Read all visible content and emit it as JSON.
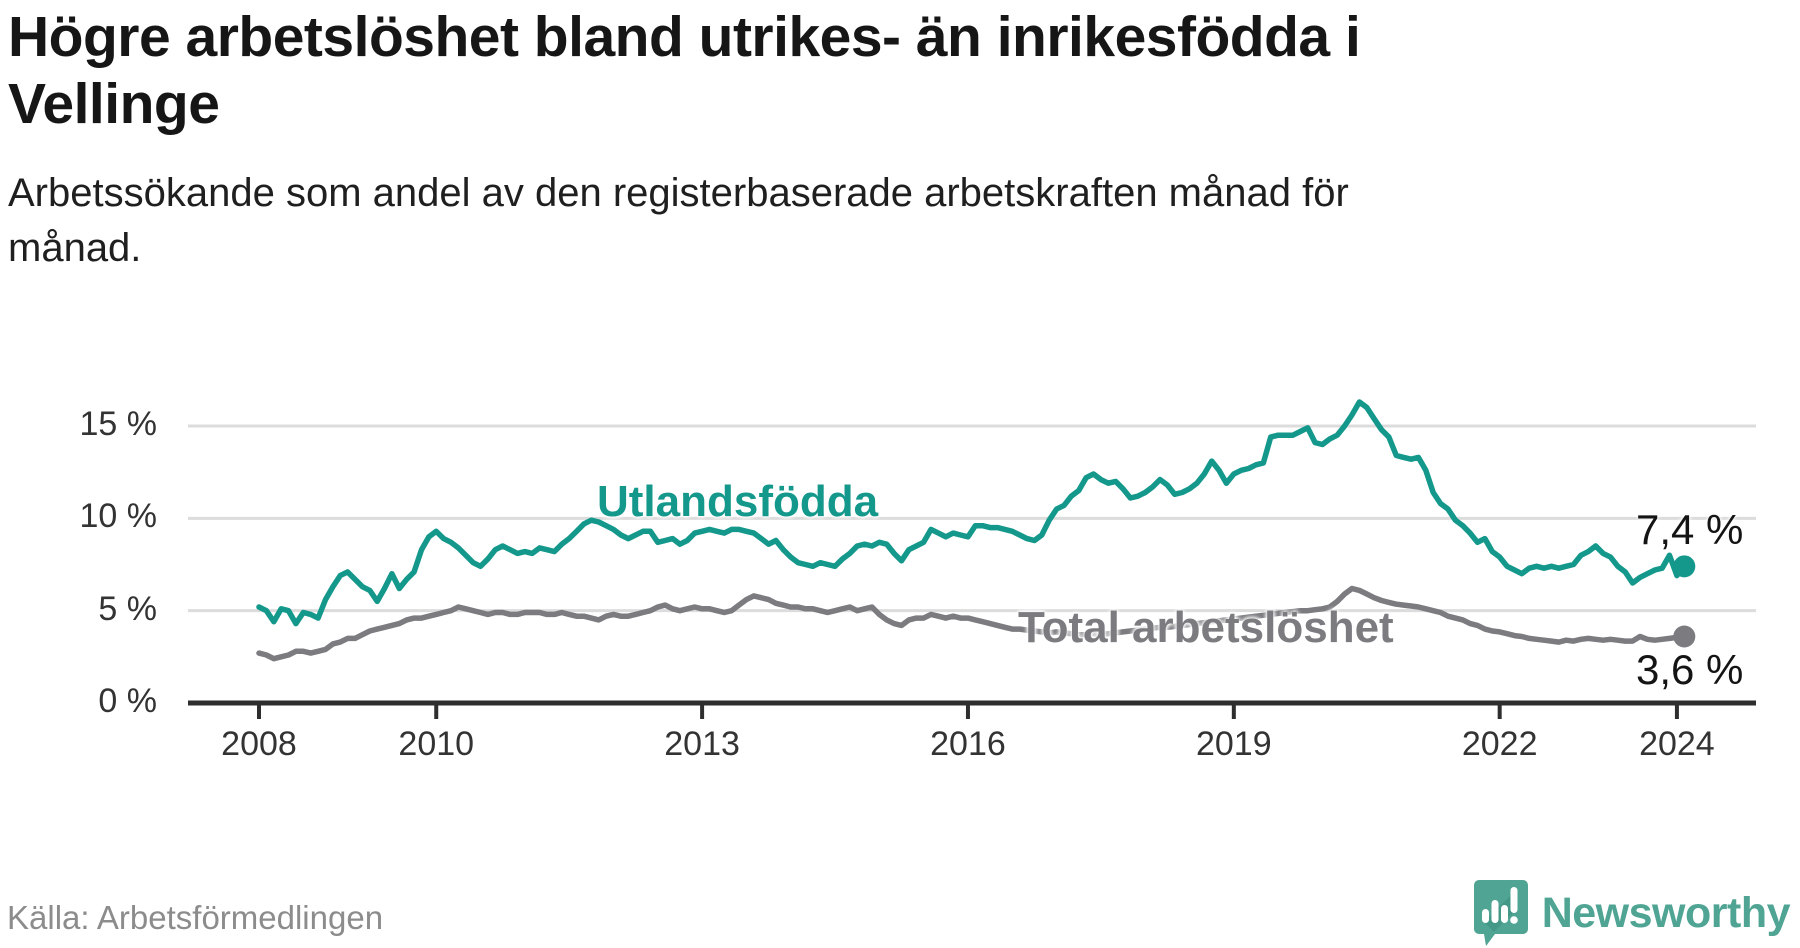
{
  "header": {
    "title": "Högre arbetslöshet bland utrikes- än inrikesfödda i Vellinge",
    "subtitle": "Arbetssökande som andel av den registerbaserade arbetskraften månad för månad."
  },
  "footer": {
    "source": "Källa: Arbetsförmedlingen",
    "brand": "Newsworthy",
    "logo_icon": "newsworthy-speech-bubble-bar-chart-icon"
  },
  "colors": {
    "accent_teal": "#14988B",
    "series_gray": "#7B7B80",
    "logo_teal": "#4FA493",
    "axis": "#2E2E2E",
    "gridline": "#DCDCDC",
    "text_dark": "#161616",
    "tick_text": "#333333",
    "source_text": "#8C8C8C"
  },
  "chart_data": {
    "type": "line",
    "title": "Högre arbetslöshet bland utrikes- än inrikesfödda i Vellinge",
    "subtitle": "Arbetssökande som andel av den registerbaserade arbetskraften månad för månad.",
    "x_unit": "month",
    "start": "2008-01",
    "end": "2024-02",
    "ylim": [
      0,
      17
    ],
    "grid": "horizontal",
    "legend_position": "inline-labels",
    "y_ticks": [
      {
        "value": 0,
        "label": "0 %"
      },
      {
        "value": 5,
        "label": "5 %"
      },
      {
        "value": 10,
        "label": "10 %"
      },
      {
        "value": 15,
        "label": "15 %"
      }
    ],
    "x_ticks": [
      {
        "year": 2008,
        "label": "2008"
      },
      {
        "year": 2010,
        "label": "2010"
      },
      {
        "year": 2013,
        "label": "2013"
      },
      {
        "year": 2016,
        "label": "2016"
      },
      {
        "year": 2019,
        "label": "2019"
      },
      {
        "year": 2022,
        "label": "2022"
      },
      {
        "year": 2024,
        "label": "2024"
      }
    ],
    "series": [
      {
        "name": "Utlandsfödda",
        "end_label": "7,4 %",
        "end_value": 7.4,
        "values": [
          5.2,
          5.0,
          4.4,
          5.1,
          5.0,
          4.3,
          4.9,
          4.8,
          4.6,
          5.6,
          6.3,
          6.9,
          7.1,
          6.7,
          6.3,
          6.1,
          5.5,
          6.2,
          7.0,
          6.2,
          6.7,
          7.1,
          8.3,
          9.0,
          9.3,
          8.9,
          8.7,
          8.4,
          8.0,
          7.6,
          7.4,
          7.8,
          8.3,
          8.5,
          8.3,
          8.1,
          8.2,
          8.1,
          8.4,
          8.3,
          8.2,
          8.6,
          8.9,
          9.3,
          9.7,
          9.9,
          9.8,
          9.6,
          9.4,
          9.1,
          8.9,
          9.1,
          9.3,
          9.3,
          8.7,
          8.8,
          8.9,
          8.6,
          8.8,
          9.2,
          9.3,
          9.4,
          9.3,
          9.2,
          9.4,
          9.4,
          9.3,
          9.2,
          8.9,
          8.6,
          8.8,
          8.3,
          7.9,
          7.6,
          7.5,
          7.4,
          7.6,
          7.5,
          7.4,
          7.8,
          8.1,
          8.5,
          8.6,
          8.5,
          8.7,
          8.6,
          8.1,
          7.7,
          8.3,
          8.5,
          8.7,
          9.4,
          9.2,
          9.0,
          9.2,
          9.1,
          9.0,
          9.6,
          9.6,
          9.5,
          9.5,
          9.4,
          9.3,
          9.1,
          8.9,
          8.8,
          9.1,
          9.9,
          10.5,
          10.7,
          11.2,
          11.5,
          12.2,
          12.4,
          12.1,
          11.9,
          12.0,
          11.6,
          11.1,
          11.2,
          11.4,
          11.7,
          12.1,
          11.8,
          11.3,
          11.4,
          11.6,
          11.9,
          12.4,
          13.1,
          12.6,
          11.9,
          12.4,
          12.6,
          12.7,
          12.9,
          13.0,
          14.4,
          14.5,
          14.5,
          14.5,
          14.7,
          14.9,
          14.1,
          14.0,
          14.3,
          14.5,
          15.0,
          15.6,
          16.3,
          16.0,
          15.4,
          14.8,
          14.4,
          13.4,
          13.3,
          13.2,
          13.3,
          12.6,
          11.4,
          10.8,
          10.5,
          9.9,
          9.6,
          9.2,
          8.7,
          8.9,
          8.2,
          7.9,
          7.4,
          7.2,
          7.0,
          7.3,
          7.4,
          7.3,
          7.4,
          7.3,
          7.4,
          7.5,
          8.0,
          8.2,
          8.5,
          8.1,
          7.9,
          7.4,
          7.1,
          6.5,
          6.8,
          7.0,
          7.2,
          7.3,
          8.0,
          6.9,
          7.4
        ]
      },
      {
        "name": "Total arbetslöshet",
        "end_label": "3,6 %",
        "end_value": 3.6,
        "values": [
          2.7,
          2.6,
          2.4,
          2.5,
          2.6,
          2.8,
          2.8,
          2.7,
          2.8,
          2.9,
          3.2,
          3.3,
          3.5,
          3.5,
          3.7,
          3.9,
          4.0,
          4.1,
          4.2,
          4.3,
          4.5,
          4.6,
          4.6,
          4.7,
          4.8,
          4.9,
          5.0,
          5.2,
          5.1,
          5.0,
          4.9,
          4.8,
          4.9,
          4.9,
          4.8,
          4.8,
          4.9,
          4.9,
          4.9,
          4.8,
          4.8,
          4.9,
          4.8,
          4.7,
          4.7,
          4.6,
          4.5,
          4.7,
          4.8,
          4.7,
          4.7,
          4.8,
          4.9,
          5.0,
          5.2,
          5.3,
          5.1,
          5.0,
          5.1,
          5.2,
          5.1,
          5.1,
          5.0,
          4.9,
          5.0,
          5.3,
          5.6,
          5.8,
          5.7,
          5.6,
          5.4,
          5.3,
          5.2,
          5.2,
          5.1,
          5.1,
          5.0,
          4.9,
          5.0,
          5.1,
          5.2,
          5.0,
          5.1,
          5.2,
          4.8,
          4.5,
          4.3,
          4.2,
          4.5,
          4.6,
          4.6,
          4.8,
          4.7,
          4.6,
          4.7,
          4.6,
          4.6,
          4.5,
          4.4,
          4.3,
          4.2,
          4.1,
          4.0,
          4.0,
          3.95,
          3.9,
          3.85,
          3.8,
          3.85,
          3.8,
          3.75,
          3.7,
          3.7,
          3.75,
          3.7,
          3.75,
          3.8,
          3.85,
          3.9,
          3.95,
          4.0,
          4.05,
          4.1,
          4.1,
          4.15,
          4.2,
          4.25,
          4.3,
          4.35,
          4.4,
          4.45,
          4.5,
          4.55,
          4.6,
          4.65,
          4.7,
          4.75,
          4.8,
          4.85,
          4.9,
          4.95,
          5.0,
          5.0,
          5.05,
          5.1,
          5.2,
          5.5,
          5.9,
          6.2,
          6.1,
          5.9,
          5.7,
          5.55,
          5.45,
          5.35,
          5.3,
          5.25,
          5.2,
          5.1,
          5.0,
          4.9,
          4.7,
          4.6,
          4.5,
          4.3,
          4.2,
          4.0,
          3.9,
          3.85,
          3.75,
          3.65,
          3.6,
          3.5,
          3.45,
          3.4,
          3.35,
          3.3,
          3.4,
          3.35,
          3.45,
          3.5,
          3.45,
          3.4,
          3.45,
          3.4,
          3.35,
          3.35,
          3.6,
          3.45,
          3.4,
          3.45,
          3.5,
          3.55,
          3.6
        ]
      }
    ]
  }
}
